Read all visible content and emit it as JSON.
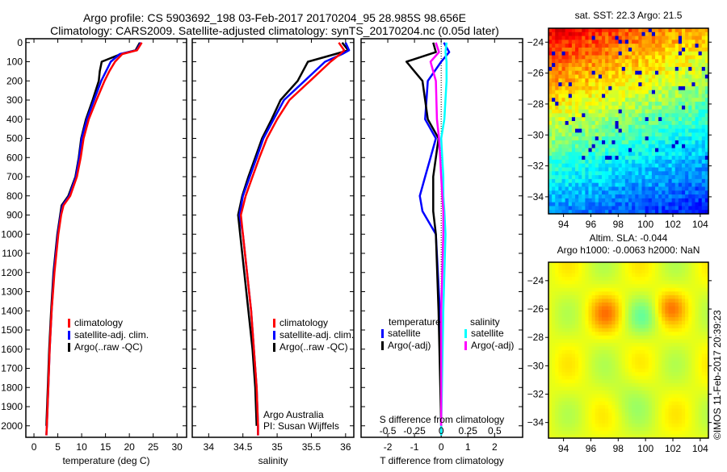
{
  "title_line1": "Argo profile: CS 5903692_198 03-Feb-2017 20170204_95 28.985S 98.656E",
  "title_line2": "Climatology: CARS2009. Satellite-adjusted climatology: synTS_20170204.nc (0.05d later)",
  "footer": "©IMOS 11-Feb-2017 20:39:23",
  "chart_data": [
    {
      "type": "line",
      "name": "temperature",
      "xlabel": "temperature (deg C)",
      "ylabel": "",
      "xlim": [
        -1.7,
        32
      ],
      "ylim": [
        2060,
        -20
      ],
      "xticks": [
        0,
        5,
        10,
        15,
        20,
        25,
        30
      ],
      "yticks": [
        0,
        100,
        200,
        300,
        400,
        500,
        600,
        700,
        800,
        900,
        1000,
        1100,
        1200,
        1300,
        1400,
        1500,
        1600,
        1700,
        1800,
        1900,
        2000
      ],
      "legend": [
        "climatology",
        "satellite-adj. clim.",
        "Argo(..raw -QC)"
      ],
      "colors": [
        "#ff0000",
        "#0000ff",
        "#000000"
      ],
      "depth": [
        0,
        40,
        60,
        100,
        150,
        200,
        300,
        400,
        500,
        600,
        700,
        800,
        850,
        900,
        1000,
        1200,
        1400,
        1600,
        1800,
        2000,
        2050
      ],
      "series": [
        {
          "name": "climatology",
          "values": [
            22.6,
            21.6,
            18.5,
            17.0,
            15.8,
            14.8,
            13.1,
            11.5,
            10.4,
            9.8,
            9.0,
            7.6,
            6.2,
            5.7,
            5.1,
            4.3,
            3.7,
            3.3,
            3.0,
            2.7,
            2.6
          ]
        },
        {
          "name": "satellite-adj. clim.",
          "values": [
            22.4,
            21.5,
            18.0,
            16.1,
            15.1,
            14.1,
            12.6,
            11.1,
            10.0,
            9.5,
            8.8,
            7.4,
            6.0,
            5.6,
            5.0,
            4.2,
            3.7,
            3.3,
            3.0,
            2.7,
            2.6
          ]
        },
        {
          "name": "Argo(..raw -QC)",
          "values": [
            22.2,
            21.3,
            18.2,
            14.2,
            13.8,
            13.6,
            12.3,
            10.9,
            9.9,
            9.4,
            8.7,
            7.2,
            5.8,
            5.5,
            4.9,
            4.1,
            3.6,
            3.2,
            2.9,
            2.6,
            null
          ]
        }
      ]
    },
    {
      "type": "line",
      "name": "salinity",
      "xlabel": "salinity",
      "xlim": [
        33.76,
        36.12
      ],
      "ylim": [
        2060,
        -20
      ],
      "xticks": [
        34,
        34.5,
        35,
        35.5,
        36
      ],
      "legend": [
        "climatology",
        "satellite-adj. clim.",
        "Argo(..raw -QC)"
      ],
      "annotation": [
        "Argo Australia",
        "PI: Susan Wijffels"
      ],
      "depth": [
        0,
        40,
        60,
        100,
        200,
        300,
        400,
        500,
        600,
        700,
        800,
        900,
        1000,
        1200,
        1400,
        1600,
        1800,
        2000,
        2050
      ],
      "series": [
        {
          "name": "climatology",
          "values": [
            35.9,
            35.98,
            35.92,
            35.78,
            35.48,
            35.18,
            35.0,
            34.85,
            34.74,
            34.64,
            34.54,
            34.47,
            34.5,
            34.56,
            34.62,
            34.66,
            34.7,
            34.72,
            34.72
          ]
        },
        {
          "name": "satellite-adj. clim.",
          "values": [
            36.0,
            36.05,
            35.95,
            35.7,
            35.4,
            35.1,
            34.95,
            34.8,
            34.7,
            34.6,
            34.5,
            34.45,
            34.5,
            34.56,
            34.62,
            34.66,
            34.7,
            34.72,
            34.72
          ]
        },
        {
          "name": "Argo(..raw -QC)",
          "values": [
            35.95,
            36.04,
            35.85,
            35.45,
            35.3,
            35.05,
            34.92,
            34.78,
            34.68,
            34.58,
            34.49,
            34.43,
            34.46,
            34.52,
            34.58,
            34.64,
            34.68,
            34.7,
            null
          ]
        }
      ]
    },
    {
      "type": "line",
      "name": "differences",
      "xlabel": "T difference from climatology",
      "x2label": "S difference from climatology",
      "xlim": [
        -3,
        3.05
      ],
      "ylim": [
        2060,
        -20
      ],
      "xticks": [
        -2,
        -1,
        0,
        1,
        2
      ],
      "x2ticks": [
        -0.5,
        -0.25,
        0,
        0.25,
        0.5
      ],
      "legend_titles": [
        "temperature",
        "salinity"
      ],
      "depth": [
        0,
        50,
        100,
        200,
        400,
        500,
        600,
        700,
        800,
        880,
        1000,
        1400,
        2000,
        2050
      ],
      "series": [
        {
          "name": "satellite",
          "group": "temperature",
          "color": "#0000ff",
          "values": [
            0.1,
            0.3,
            0.0,
            -0.5,
            -0.6,
            -0.2,
            -0.4,
            -0.6,
            -0.8,
            -0.7,
            -0.2,
            -0.05,
            0,
            0
          ]
        },
        {
          "name": "Argo(-adj)",
          "group": "temperature",
          "color": "#000000",
          "values": [
            -0.3,
            -0.2,
            -1.3,
            -0.7,
            -0.5,
            -0.1,
            -0.2,
            -0.3,
            -0.3,
            -0.3,
            -0.2,
            -0.1,
            0,
            null
          ]
        },
        {
          "name": "satellite",
          "group": "salinity",
          "color": "#00ffff",
          "values": [
            0.05,
            0.04,
            0.05,
            0.05,
            0.03,
            0.0,
            0.01,
            0.02,
            0.02,
            0.03,
            0.04,
            0.02,
            0,
            0
          ]
        },
        {
          "name": "Argo(-adj)",
          "group": "salinity",
          "color": "#ff00ff",
          "values": [
            -0.05,
            -0.02,
            -0.1,
            -0.05,
            -0.04,
            -0.02,
            -0.01,
            0,
            0.01,
            0.02,
            0.02,
            0,
            0,
            null
          ]
        }
      ]
    },
    {
      "type": "heatmap",
      "name": "sst-map",
      "title": "sat. SST: 22.3 Argo: 21.5",
      "xlim": [
        92.9,
        104.6
      ],
      "ylim": [
        -35.1,
        -23.1
      ],
      "xticks": [
        94,
        96,
        98,
        100,
        102,
        104
      ],
      "yticks": [
        -24,
        -26,
        -28,
        -30,
        -32,
        -34
      ]
    },
    {
      "type": "heatmap",
      "name": "sla-map",
      "title_line1": "Altim. SLA: -0.044",
      "title_line2": "Argo h1000: -0.0063 h2000: NaN",
      "xlim": [
        92.9,
        104.6
      ],
      "ylim": [
        -35.1,
        -22.7
      ],
      "xticks": [
        94,
        96,
        98,
        100,
        102,
        104
      ],
      "yticks": [
        -24,
        -26,
        -28,
        -30,
        -32,
        -34
      ]
    }
  ]
}
